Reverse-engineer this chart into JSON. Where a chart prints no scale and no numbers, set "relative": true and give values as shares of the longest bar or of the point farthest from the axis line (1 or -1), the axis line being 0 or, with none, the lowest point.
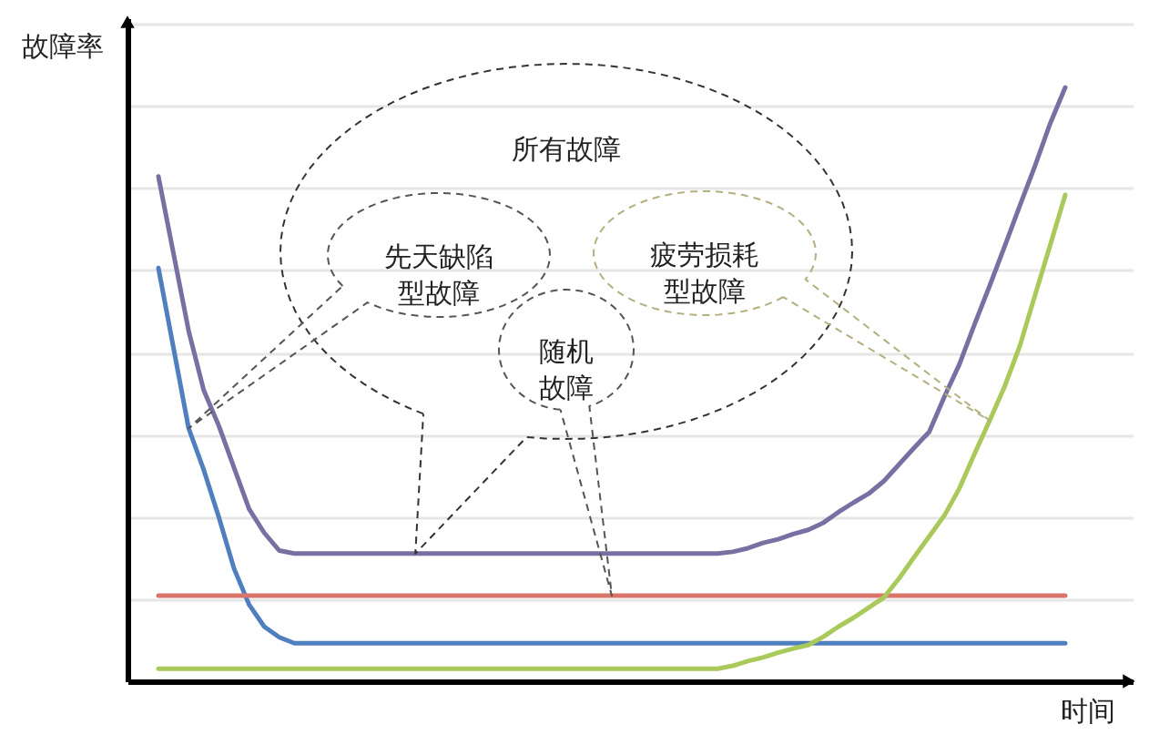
{
  "chart_data": {
    "type": "line",
    "relative": true,
    "xlabel": "时间",
    "ylabel": "故障率",
    "grid": "y",
    "categories": [
      null,
      null,
      null,
      null,
      null,
      null,
      null,
      null,
      null,
      null,
      null,
      null,
      null,
      null,
      null,
      null,
      null,
      null,
      null,
      null,
      null,
      null,
      null,
      null,
      null,
      null,
      null,
      null,
      null,
      null,
      null,
      null,
      null,
      null,
      null,
      null,
      null,
      null,
      null,
      null,
      null,
      null,
      null,
      null,
      null,
      null,
      null,
      null,
      null,
      null,
      null,
      null,
      null,
      null,
      null,
      null,
      null,
      null,
      null,
      null,
      null
    ],
    "annotations": [
      "所有故障",
      "先天缺陷型故障",
      "疲劳损耗型故障",
      "随机故障"
    ],
    "series": [
      {
        "color": "#7a6fa3",
        "values": [
          0.85,
          0.72,
          0.59,
          0.49,
          0.43,
          0.36,
          0.29,
          0.25,
          0.22,
          0.215,
          0.215,
          0.215,
          0.215,
          0.215,
          0.215,
          0.215,
          0.215,
          0.215,
          0.215,
          0.215,
          0.215,
          0.215,
          0.215,
          0.215,
          0.215,
          0.215,
          0.215,
          0.215,
          0.215,
          0.215,
          0.215,
          0.215,
          0.215,
          0.215,
          0.215,
          0.215,
          0.215,
          0.215,
          0.218,
          0.224,
          0.233,
          0.239,
          0.248,
          0.255,
          0.267,
          0.285,
          0.301,
          0.316,
          0.337,
          0.365,
          0.393,
          0.42,
          0.479,
          0.534,
          0.601,
          0.666,
          0.733,
          0.801,
          0.868,
          0.939,
          1.0
        ]
      },
      {
        "color": "#4f7fbf",
        "values": [
          0.696,
          0.561,
          0.426,
          0.356,
          0.276,
          0.19,
          0.129,
          0.092,
          0.074,
          0.064,
          0.064,
          0.064,
          0.064,
          0.064,
          0.064,
          0.064,
          0.064,
          0.064,
          0.064,
          0.064,
          0.064,
          0.064,
          0.064,
          0.064,
          0.064,
          0.064,
          0.064,
          0.064,
          0.064,
          0.064,
          0.064,
          0.064,
          0.064,
          0.064,
          0.064,
          0.064,
          0.064,
          0.064,
          0.064,
          0.064,
          0.064,
          0.064,
          0.064,
          0.064,
          0.064,
          0.064,
          0.064,
          0.064,
          0.064,
          0.064,
          0.064,
          0.064,
          0.064,
          0.064,
          0.064,
          0.064,
          0.064,
          0.064,
          0.064,
          0.064,
          0.064
        ]
      },
      {
        "color": "#d9756b",
        "values": [
          0.144,
          0.144,
          0.144,
          0.144,
          0.144,
          0.144,
          0.144,
          0.144,
          0.144,
          0.144,
          0.144,
          0.144,
          0.144,
          0.144,
          0.144,
          0.144,
          0.144,
          0.144,
          0.144,
          0.144,
          0.144,
          0.144,
          0.144,
          0.144,
          0.144,
          0.144,
          0.144,
          0.144,
          0.144,
          0.144,
          0.144,
          0.144,
          0.144,
          0.144,
          0.144,
          0.144,
          0.144,
          0.144,
          0.144,
          0.144,
          0.144,
          0.144,
          0.144,
          0.144,
          0.144,
          0.144,
          0.144,
          0.144,
          0.144,
          0.144,
          0.144,
          0.144,
          0.144,
          0.144,
          0.144,
          0.144,
          0.144,
          0.144,
          0.144,
          0.144,
          0.144
        ]
      },
      {
        "color": "#a9c95b",
        "values": [
          0.021,
          0.021,
          0.021,
          0.021,
          0.021,
          0.021,
          0.021,
          0.021,
          0.021,
          0.021,
          0.021,
          0.021,
          0.021,
          0.021,
          0.021,
          0.021,
          0.021,
          0.021,
          0.021,
          0.021,
          0.021,
          0.021,
          0.021,
          0.021,
          0.021,
          0.021,
          0.021,
          0.021,
          0.021,
          0.021,
          0.021,
          0.021,
          0.021,
          0.021,
          0.021,
          0.021,
          0.021,
          0.021,
          0.026,
          0.034,
          0.04,
          0.048,
          0.055,
          0.061,
          0.075,
          0.092,
          0.107,
          0.124,
          0.141,
          0.173,
          0.209,
          0.244,
          0.279,
          0.325,
          0.383,
          0.439,
          0.497,
          0.565,
          0.65,
          0.734,
          0.819
        ]
      }
    ]
  }
}
